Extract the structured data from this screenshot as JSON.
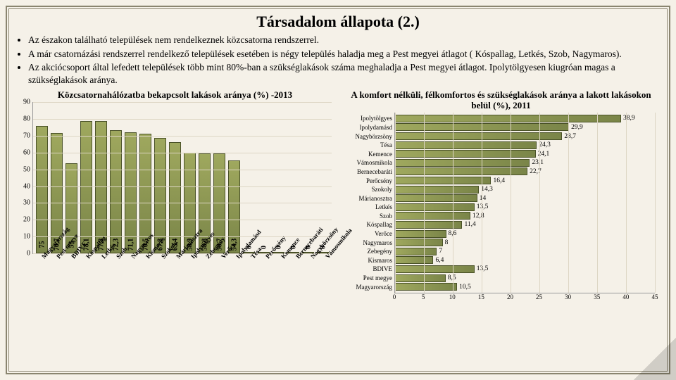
{
  "title": "Társadalom állapota (2.)",
  "bullets": [
    "Az északon található települések nem rendelkeznek közcsatorna rendszerrel.",
    "A már csatornázási rendszerrel rendelkező települések esetében is négy település haladja meg a Pest megyei átlagot ( Kóspallag, Letkés, Szob, Nagymaros).",
    "Az akciócsoport által lefedett települések több mint 80%-ban a szükséglakások száma meghaladja a Pest megyei átlagot. Ipolytölgyesen kiugróan magas a szükséglakások aránya."
  ],
  "bar_chart": {
    "title": "Közcsatornahálózatba bekapcsolt lakások aránya (%) -2013",
    "ymax": 90,
    "ytick_step": 10,
    "categories": [
      "Magyarország",
      "Pest megye",
      "BDIVE",
      "Kóspallag",
      "Letkés",
      "Szob",
      "Nagymaros",
      "Kismaros",
      "Szokoly",
      "Márianosztra",
      "Ipolytölgyes",
      "Zebegény",
      "Verőce",
      "Ipolydamásd",
      "Tésa",
      "Perőcsény",
      "Kemence",
      "Bernecebaráti",
      "Nagybörzsöny",
      "Vámosmikola"
    ],
    "values": [
      75,
      70.7,
      53,
      78.1,
      77.8,
      72.3,
      71.1,
      70.5,
      67.8,
      65.4,
      58.9,
      58.8,
      58.7,
      54.3,
      0,
      0,
      0,
      0,
      0,
      0
    ],
    "value_labels": [
      "75",
      "70,7",
      "53",
      "78,1",
      "77,8",
      "72,3",
      "71,1",
      "70,5",
      "67,8",
      "65,4",
      "58,9",
      "58,8",
      "58,7",
      "54,3",
      "0",
      "0",
      "0",
      "0",
      "0",
      "0"
    ],
    "bar_color": "#7a8548",
    "grid_color": "#ddd6c4"
  },
  "hbar_chart": {
    "title": "A komfort nélküli, félkomfortos és szükséglakások aránya a lakott lakásokon belül (%), 2011",
    "xmax": 45,
    "xtick_step": 5,
    "categories": [
      "Ipolytölgyes",
      "Ipolydamásd",
      "Nagybörzsöny",
      "Tésa",
      "Kemence",
      "Vámosmikola",
      "Bernecebaráti",
      "Perőcsény",
      "Szokoly",
      "Márianosztra",
      "Letkés",
      "Szob",
      "Kóspallag",
      "Verőce",
      "Nagymaros",
      "Zebegény",
      "Kismaros",
      "BDIVE",
      "Pest megye",
      "Magyarország"
    ],
    "values": [
      38.9,
      29.9,
      28.7,
      24.3,
      24.1,
      23.1,
      22.7,
      16.4,
      14.3,
      14,
      13.5,
      12.8,
      11.4,
      8.6,
      8,
      7,
      6.4,
      13.5,
      8.5,
      10.5
    ],
    "value_labels": [
      "38,9",
      "29,9",
      "28,7",
      "24,3",
      "24,1",
      "23,1",
      "22,7",
      "16,4",
      "14,3",
      "14",
      "13,5",
      "12,8",
      "11,4",
      "8,6",
      "8",
      "7",
      "6,4",
      "13,5",
      "8,5",
      "10,5"
    ],
    "bar_color": "#7a8548",
    "grid_color": "#ddd6c4"
  },
  "background_color": "#f5f1e8",
  "border_color": "#8a8570"
}
